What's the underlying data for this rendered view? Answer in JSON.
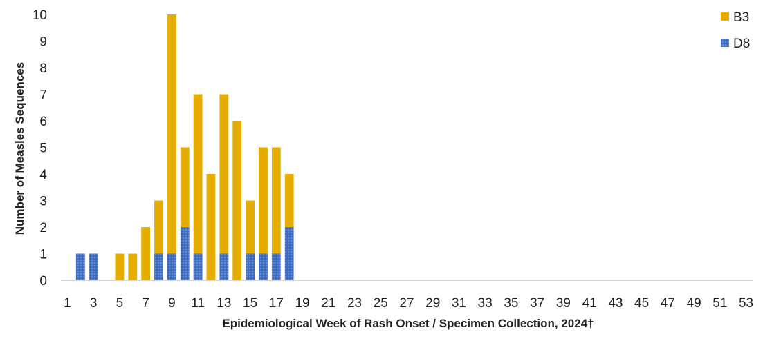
{
  "chart_data": {
    "type": "bar",
    "stacked": true,
    "title": "",
    "xlabel": "Epidemiological Week of Rash Onset / Specimen Collection, 2024†",
    "ylabel": "Number of Measles Sequences",
    "ylim": [
      0,
      10
    ],
    "yticks": [
      "0",
      "1",
      "2",
      "3",
      "4",
      "5",
      "6",
      "7",
      "8",
      "9",
      "10"
    ],
    "x_range": [
      1,
      53
    ],
    "xtick_labels": [
      "1",
      "3",
      "5",
      "7",
      "9",
      "11",
      "13",
      "15",
      "17",
      "19",
      "21",
      "23",
      "25",
      "27",
      "29",
      "31",
      "33",
      "35",
      "37",
      "39",
      "41",
      "43",
      "45",
      "47",
      "49",
      "51",
      "53"
    ],
    "categories": [
      1,
      2,
      3,
      4,
      5,
      6,
      7,
      8,
      9,
      10,
      11,
      12,
      13,
      14,
      15,
      16,
      17,
      18,
      19,
      20,
      21,
      22,
      23,
      24,
      25,
      26,
      27,
      28,
      29,
      30,
      31,
      32,
      33,
      34,
      35,
      36,
      37,
      38,
      39,
      40,
      41,
      42,
      43,
      44,
      45,
      46,
      47,
      48,
      49,
      50,
      51,
      52,
      53
    ],
    "series": [
      {
        "name": "D8",
        "color": "#4472C4",
        "pattern": "dotted",
        "values": [
          0,
          1,
          1,
          0,
          0,
          0,
          0,
          1,
          1,
          2,
          1,
          0,
          1,
          0,
          1,
          1,
          1,
          2,
          0,
          0,
          0,
          0,
          0,
          0,
          0,
          0,
          0,
          0,
          0,
          0,
          0,
          0,
          0,
          0,
          0,
          0,
          0,
          0,
          0,
          0,
          0,
          0,
          0,
          0,
          0,
          0,
          0,
          0,
          0,
          0,
          0,
          0,
          0
        ]
      },
      {
        "name": "B3",
        "color": "#E6AC00",
        "pattern": "solid",
        "values": [
          0,
          0,
          0,
          0,
          1,
          1,
          2,
          2,
          9,
          3,
          6,
          4,
          6,
          6,
          2,
          4,
          4,
          2,
          0,
          0,
          0,
          0,
          0,
          0,
          0,
          0,
          0,
          0,
          0,
          0,
          0,
          0,
          0,
          0,
          0,
          0,
          0,
          0,
          0,
          0,
          0,
          0,
          0,
          0,
          0,
          0,
          0,
          0,
          0,
          0,
          0,
          0,
          0
        ]
      }
    ],
    "legend": [
      {
        "name": "B3",
        "color": "#E6AC00"
      },
      {
        "name": "D8",
        "color": "#4472C4"
      }
    ],
    "legend_position": "top-right",
    "grid": false
  }
}
